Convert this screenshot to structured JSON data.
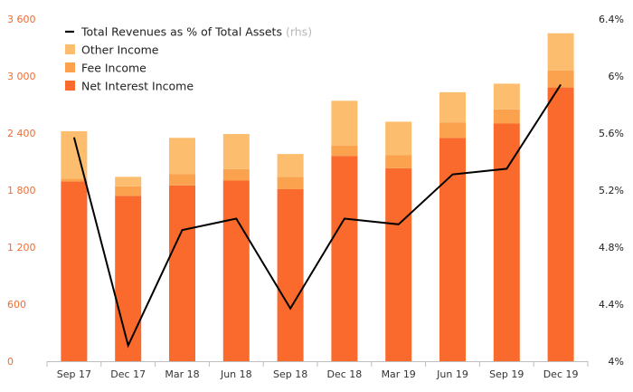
{
  "chart_data": {
    "type": "bar",
    "stacked": true,
    "categories": [
      "Sep 17",
      "Dec 17",
      "Mar 18",
      "Jun 18",
      "Sep 18",
      "Dec 18",
      "Mar 19",
      "Jun 19",
      "Sep 19",
      "Dec 19"
    ],
    "series": [
      {
        "name": "Net Interest Income",
        "color": "#F96A2C",
        "values": [
          1890,
          1740,
          1850,
          1900,
          1810,
          2160,
          2030,
          2350,
          2500,
          2880
        ]
      },
      {
        "name": "Fee Income",
        "color": "#FBA24F",
        "values": [
          30,
          100,
          120,
          120,
          130,
          110,
          140,
          160,
          150,
          180
        ]
      },
      {
        "name": "Other Income",
        "color": "#FDBD6E",
        "values": [
          500,
          100,
          380,
          370,
          240,
          470,
          350,
          320,
          270,
          390
        ]
      }
    ],
    "line_series": {
      "name": "Total Revenues as % of Total Assets",
      "suffix": "(rhs)",
      "axis": "right",
      "color": "#000000",
      "values": [
        5.57,
        4.11,
        4.92,
        5.0,
        4.37,
        5.0,
        4.96,
        5.31,
        5.35,
        5.94
      ]
    },
    "y_left": {
      "ylim": [
        0,
        3600
      ],
      "ticks": [
        "0",
        "600",
        "1 200",
        "1 800",
        "2 400",
        "3 000",
        "3 600"
      ],
      "color": "#F26B2F"
    },
    "y_right": {
      "ylim": [
        4.0,
        6.4
      ],
      "ticks": [
        "4%",
        "4.4%",
        "4.8%",
        "5.2%",
        "5.6%",
        "6%",
        "6.4%"
      ],
      "color": "#222222"
    },
    "legend": {
      "placement": "top-left",
      "entries": [
        {
          "label": "Total Revenues as % of Total Assets",
          "suffix": "(rhs)",
          "kind": "line",
          "color": "#000000"
        },
        {
          "label": "Other Income",
          "kind": "box",
          "color": "#FDBD6E"
        },
        {
          "label": "Fee Income",
          "kind": "box",
          "color": "#FBA24F"
        },
        {
          "label": "Net Interest Income",
          "kind": "box",
          "color": "#F96A2C"
        }
      ]
    },
    "grid": false,
    "title": "",
    "xlabel": "",
    "ylabel": ""
  }
}
